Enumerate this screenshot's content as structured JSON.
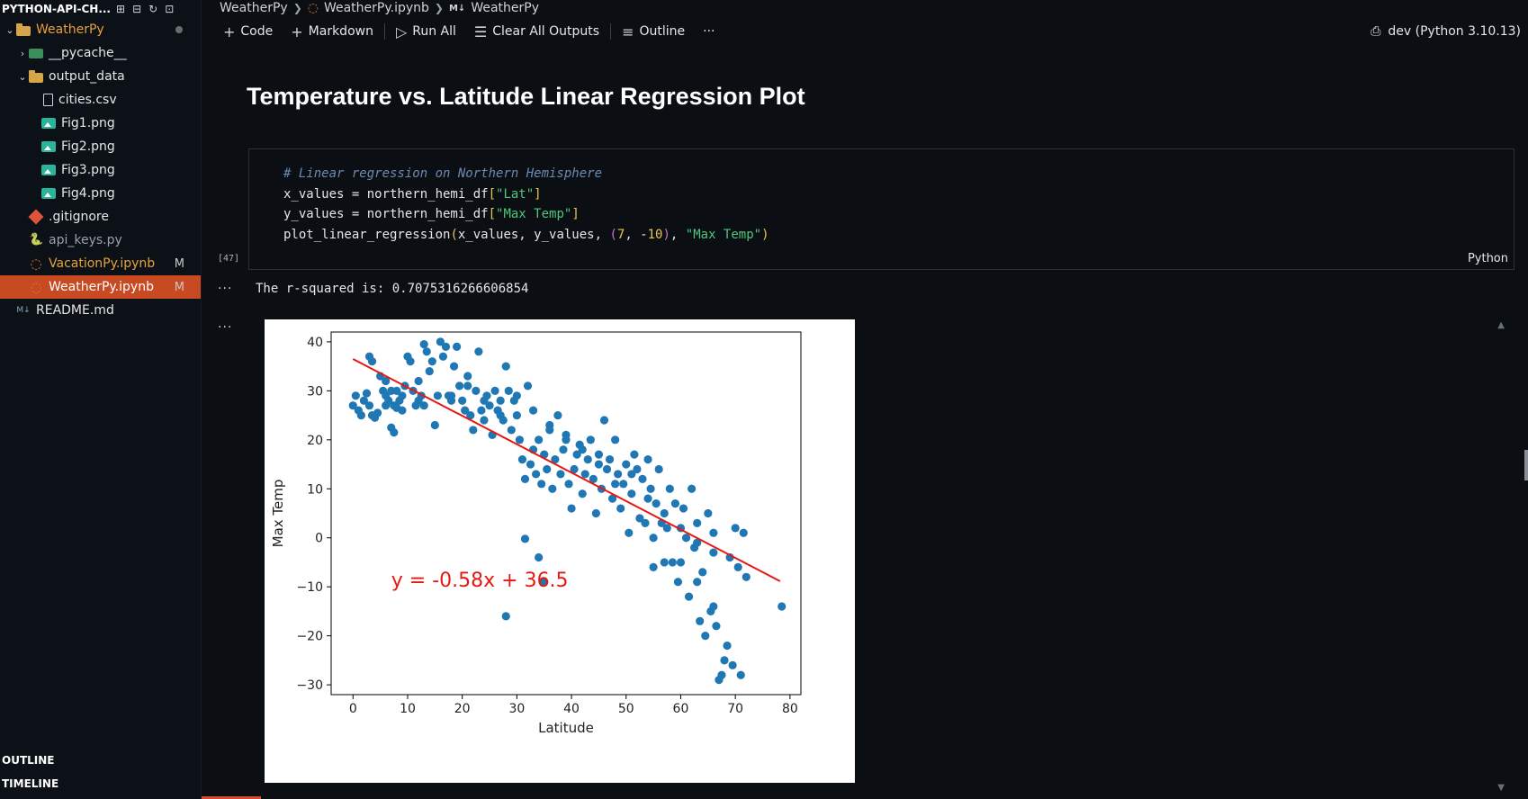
{
  "sidebar": {
    "title": "PYTHON-API-CH...",
    "actions": [
      "new-file-icon",
      "new-folder-icon",
      "refresh-icon",
      "collapse-icon"
    ],
    "tree": [
      {
        "label": "WeatherPy",
        "type": "folder",
        "expanded": true,
        "depth": 0,
        "modified_dot": true,
        "color": "#e8a23a"
      },
      {
        "label": "__pycache__",
        "type": "pycache",
        "expanded": false,
        "depth": 1
      },
      {
        "label": "output_data",
        "type": "folder",
        "expanded": true,
        "depth": 1
      },
      {
        "label": "cities.csv",
        "type": "file",
        "depth": 2
      },
      {
        "label": "Fig1.png",
        "type": "image",
        "depth": 2
      },
      {
        "label": "Fig2.png",
        "type": "image",
        "depth": 2
      },
      {
        "label": "Fig3.png",
        "type": "image",
        "depth": 2
      },
      {
        "label": "Fig4.png",
        "type": "image",
        "depth": 2
      },
      {
        "label": ".gitignore",
        "type": "git",
        "depth": 1
      },
      {
        "label": "api_keys.py",
        "type": "python",
        "depth": 1,
        "dimmed": true
      },
      {
        "label": "VacationPy.ipynb",
        "type": "notebook",
        "depth": 1,
        "badge": "M",
        "color": "#e8a23a"
      },
      {
        "label": "WeatherPy.ipynb",
        "type": "notebook",
        "depth": 1,
        "badge": "M",
        "active": true
      },
      {
        "label": "README.md",
        "type": "markdown",
        "depth": 0
      }
    ],
    "outline_label": "OUTLINE",
    "timeline_label": "TIMELINE"
  },
  "breadcrumb": {
    "folder": "WeatherPy",
    "file": "WeatherPy.ipynb",
    "section_marker": "M↓",
    "section": "WeatherPy"
  },
  "toolbar": {
    "code_label": "Code",
    "markdown_label": "Markdown",
    "run_all_label": "Run All",
    "clear_outputs_label": "Clear All Outputs",
    "outline_label": "Outline",
    "more_label": "···",
    "kernel_label": "dev (Python 3.10.13)"
  },
  "notebook": {
    "heading": "Temperature vs. Latitude Linear Regression Plot",
    "cell": {
      "execution_count": "[47]",
      "language": "Python",
      "code_lines": [
        "# Linear regression on Northern Hemisphere",
        "x_values = northern_hemi_df[\"Lat\"]",
        "y_values = northern_hemi_df[\"Max Temp\"]",
        "plot_linear_regression(x_values, y_values, (7, -10), \"Max Temp\")"
      ]
    },
    "output_text": "The r-squared is: 0.7075316266606854",
    "output_more": "···"
  },
  "chart_data": {
    "type": "scatter",
    "title": "",
    "xlabel": "Latitude",
    "ylabel": "Max Temp",
    "xlim": [
      -4,
      82
    ],
    "ylim": [
      -32,
      42
    ],
    "xticks": [
      0,
      10,
      20,
      30,
      40,
      50,
      60,
      70,
      80
    ],
    "yticks": [
      -30,
      -20,
      -10,
      0,
      10,
      20,
      30,
      40
    ],
    "grid": false,
    "point_color": "#1f77b4",
    "line_color": "#e8170f",
    "regression": {
      "slope": -0.58,
      "intercept": 36.5,
      "x_range": [
        0,
        78.2
      ]
    },
    "annotation": {
      "text": "y = -0.58x + 36.5",
      "x": 7,
      "y": -10,
      "color": "#e8170f"
    },
    "points": [
      [
        0,
        27
      ],
      [
        0.5,
        29
      ],
      [
        1,
        26
      ],
      [
        1.5,
        25
      ],
      [
        2,
        28
      ],
      [
        2.5,
        29.5
      ],
      [
        3,
        27
      ],
      [
        3.5,
        25
      ],
      [
        4,
        24.5
      ],
      [
        4.5,
        25.5
      ],
      [
        3,
        37
      ],
      [
        3.5,
        36
      ],
      [
        5,
        33
      ],
      [
        5.5,
        30
      ],
      [
        6,
        29
      ],
      [
        6,
        32
      ],
      [
        6.5,
        28
      ],
      [
        7,
        30
      ],
      [
        7.5,
        27
      ],
      [
        8,
        26.5
      ],
      [
        7,
        22.5
      ],
      [
        7.5,
        21.5
      ],
      [
        8,
        30
      ],
      [
        8.5,
        28
      ],
      [
        9,
        29
      ],
      [
        9.5,
        31
      ],
      [
        10,
        37
      ],
      [
        10.5,
        36
      ],
      [
        11,
        30
      ],
      [
        11.5,
        27
      ],
      [
        12,
        32
      ],
      [
        12.5,
        29
      ],
      [
        13,
        27
      ],
      [
        13,
        39.5
      ],
      [
        13.5,
        38
      ],
      [
        14,
        34
      ],
      [
        14.5,
        36
      ],
      [
        15,
        23
      ],
      [
        15.5,
        29
      ],
      [
        16,
        40
      ],
      [
        16.5,
        37
      ],
      [
        17,
        39
      ],
      [
        17.5,
        29
      ],
      [
        18,
        28
      ],
      [
        18.5,
        35
      ],
      [
        19,
        39
      ],
      [
        19.5,
        31
      ],
      [
        20,
        28
      ],
      [
        20.5,
        26
      ],
      [
        21,
        33
      ],
      [
        21.5,
        25
      ],
      [
        22,
        22
      ],
      [
        22.5,
        30
      ],
      [
        23,
        38
      ],
      [
        23.5,
        26
      ],
      [
        24,
        24
      ],
      [
        24.5,
        29
      ],
      [
        25,
        27
      ],
      [
        25.5,
        21
      ],
      [
        26,
        30
      ],
      [
        26.5,
        26
      ],
      [
        27,
        28
      ],
      [
        27.5,
        24
      ],
      [
        28,
        35
      ],
      [
        28.5,
        30
      ],
      [
        29,
        22
      ],
      [
        29.5,
        28
      ],
      [
        30,
        25
      ],
      [
        30.5,
        20
      ],
      [
        31,
        16
      ],
      [
        31.5,
        12
      ],
      [
        32,
        31
      ],
      [
        32.5,
        15
      ],
      [
        33,
        18
      ],
      [
        33.5,
        13
      ],
      [
        34,
        20
      ],
      [
        34.5,
        11
      ],
      [
        35,
        17
      ],
      [
        35.5,
        14
      ],
      [
        36,
        22
      ],
      [
        36.5,
        10
      ],
      [
        37,
        16
      ],
      [
        37.5,
        25
      ],
      [
        38,
        13
      ],
      [
        38.5,
        18
      ],
      [
        39,
        20
      ],
      [
        39.5,
        11
      ],
      [
        40,
        6
      ],
      [
        40.5,
        14
      ],
      [
        41,
        17
      ],
      [
        41.5,
        19
      ],
      [
        42,
        9
      ],
      [
        42.5,
        13
      ],
      [
        43,
        16
      ],
      [
        43.5,
        20
      ],
      [
        44,
        12
      ],
      [
        44.5,
        5
      ],
      [
        45,
        17
      ],
      [
        45.5,
        10
      ],
      [
        46,
        24
      ],
      [
        46.5,
        14
      ],
      [
        47,
        16
      ],
      [
        47.5,
        8
      ],
      [
        48,
        20
      ],
      [
        48.5,
        13
      ],
      [
        49,
        6
      ],
      [
        49.5,
        11
      ],
      [
        50,
        15
      ],
      [
        50.5,
        1
      ],
      [
        51,
        9
      ],
      [
        51.5,
        17
      ],
      [
        52,
        14
      ],
      [
        52.5,
        4
      ],
      [
        53,
        12
      ],
      [
        53.5,
        3
      ],
      [
        54,
        16
      ],
      [
        54.5,
        10
      ],
      [
        55,
        0
      ],
      [
        55.5,
        7
      ],
      [
        56,
        14
      ],
      [
        56.5,
        3
      ],
      [
        57,
        -5
      ],
      [
        57.5,
        2
      ],
      [
        58,
        10
      ],
      [
        58.5,
        -5
      ],
      [
        59,
        7
      ],
      [
        59.5,
        -9
      ],
      [
        60,
        -5
      ],
      [
        60.5,
        6
      ],
      [
        61,
        0
      ],
      [
        61.5,
        -12
      ],
      [
        62,
        10
      ],
      [
        62.5,
        -2
      ],
      [
        63,
        3
      ],
      [
        63.5,
        -17
      ],
      [
        64,
        -7
      ],
      [
        64.5,
        -20
      ],
      [
        65,
        5
      ],
      [
        65.5,
        -15
      ],
      [
        66,
        -14
      ],
      [
        66.5,
        -18
      ],
      [
        67,
        -29
      ],
      [
        67.5,
        -28
      ],
      [
        68,
        -25
      ],
      [
        68.5,
        -22
      ],
      [
        69,
        -4
      ],
      [
        69.5,
        -26
      ],
      [
        70,
        2
      ],
      [
        70.5,
        -6
      ],
      [
        71,
        -28
      ],
      [
        71.5,
        1
      ],
      [
        72,
        -8
      ],
      [
        78.5,
        -14
      ],
      [
        28,
        -16
      ],
      [
        34,
        -4
      ],
      [
        35,
        -9
      ],
      [
        31.5,
        -0.2
      ],
      [
        55,
        -6
      ],
      [
        66,
        1
      ],
      [
        63,
        -9
      ],
      [
        6,
        27
      ],
      [
        9,
        26
      ],
      [
        12,
        28
      ],
      [
        18,
        29
      ],
      [
        21,
        31
      ],
      [
        24,
        28
      ],
      [
        27,
        25
      ],
      [
        30,
        29
      ],
      [
        33,
        26
      ],
      [
        36,
        23
      ],
      [
        39,
        21
      ],
      [
        42,
        18
      ],
      [
        45,
        15
      ],
      [
        48,
        11
      ],
      [
        51,
        13
      ],
      [
        54,
        8
      ],
      [
        57,
        5
      ],
      [
        60,
        2
      ],
      [
        63,
        -1
      ],
      [
        66,
        -3
      ]
    ]
  }
}
